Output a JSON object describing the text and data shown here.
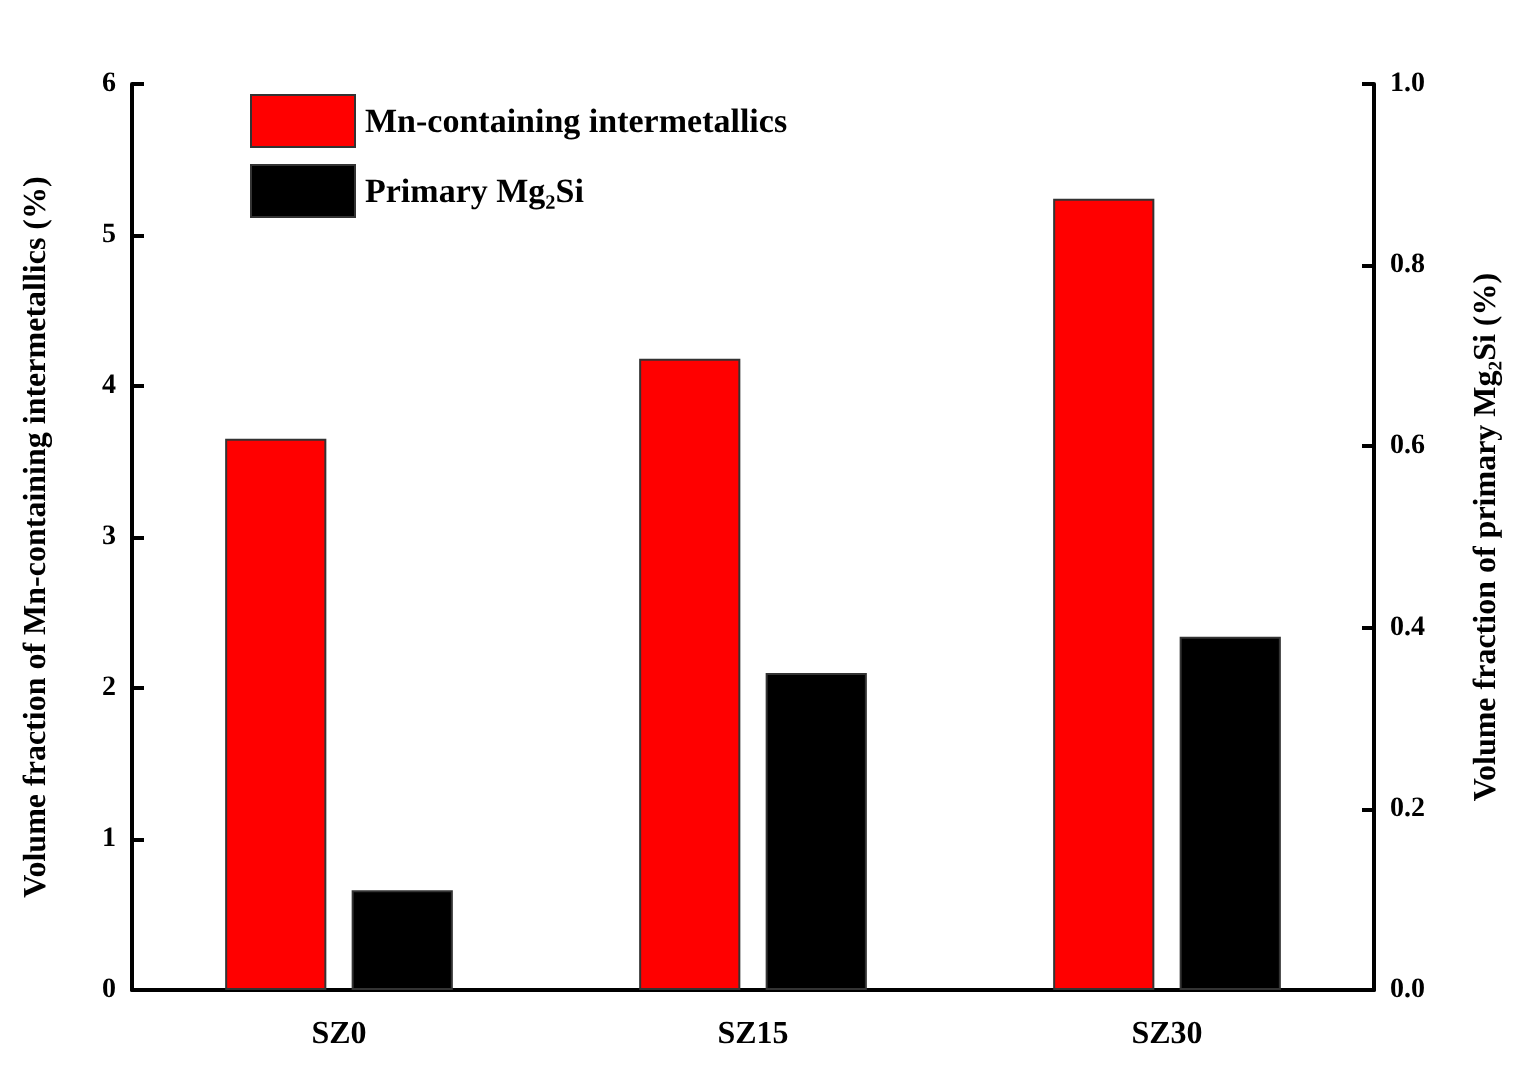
{
  "chart_data": {
    "type": "bar",
    "ylabel": "Volume fraction of Mn-containing intermetallics (%)",
    "y2label": "Volume fraction of primary Mg₂Si (%)",
    "categories": [
      "SZ0",
      "SZ15",
      "SZ30"
    ],
    "series": [
      {
        "name": "Mn-containing intermetallics",
        "color": "#ff0000",
        "values": [
          3.65,
          4.18,
          5.24
        ]
      },
      {
        "name": "Primary Mg₂Si",
        "color": "#000000",
        "values": [
          0.11,
          0.35,
          0.39
        ],
        "axis": "y2"
      }
    ],
    "ylim": [
      0,
      6
    ],
    "yticks": [
      0,
      1,
      2,
      3,
      4,
      5,
      6
    ],
    "y2lim": [
      0,
      1
    ],
    "y2ticks": [
      {
        "value": 0,
        "label": "0.0"
      },
      {
        "value": 0.2,
        "label": "0.2"
      },
      {
        "value": 0.4,
        "label": "0.4"
      },
      {
        "value": 0.6,
        "label": "0.6"
      },
      {
        "value": 0.8,
        "label": "0.8"
      },
      {
        "value": 1,
        "label": "1.0"
      }
    ],
    "legend": "top left",
    "grid": false
  }
}
